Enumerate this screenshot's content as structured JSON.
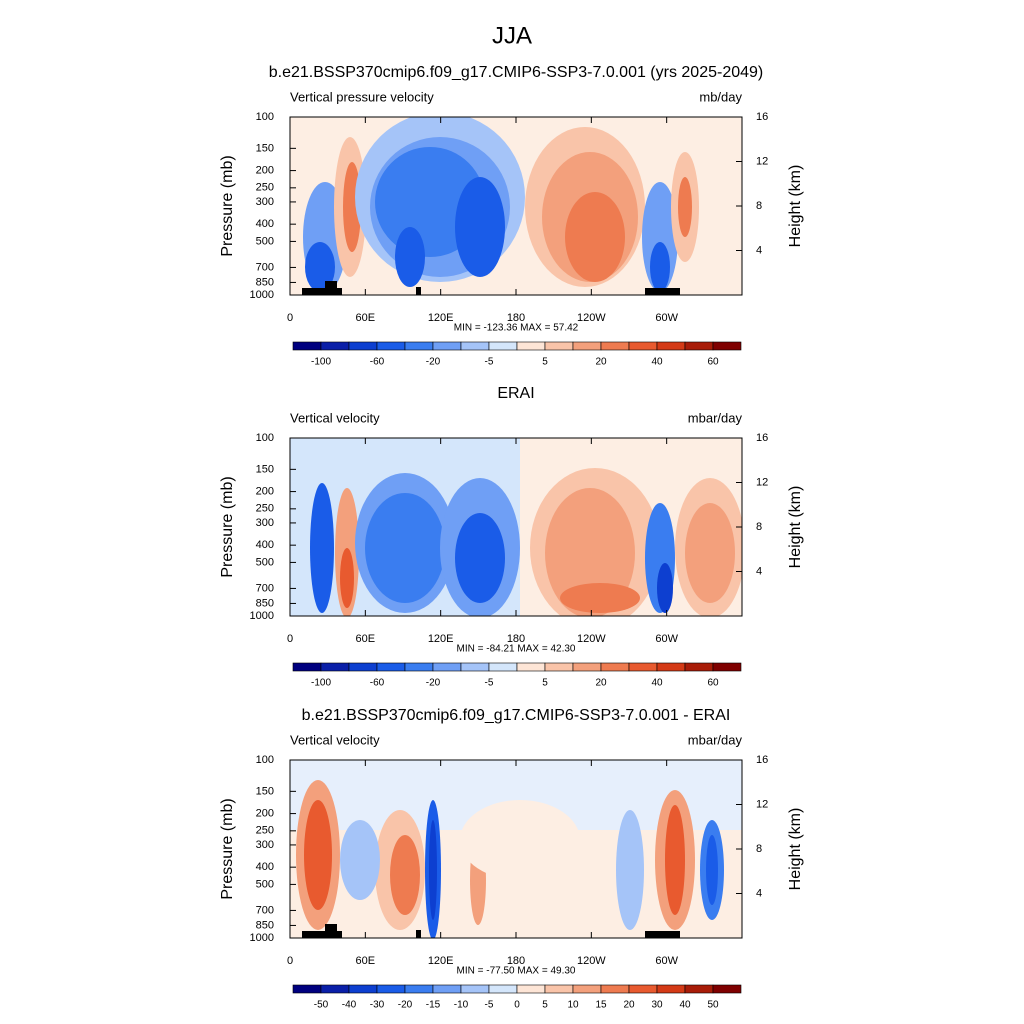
{
  "title": "JJA",
  "axes": {
    "xlim": [
      0,
      360
    ],
    "xticks": [
      0,
      {
        "value": 60,
        "label": "60E"
      },
      {
        "value": 120,
        "label": "120E"
      },
      {
        "value": 180,
        "label": "180"
      },
      {
        "value": 240,
        "label": "120W"
      },
      {
        "value": 300,
        "label": "60W"
      }
    ],
    "ylim": [
      1000,
      100
    ],
    "log_y": true,
    "yticks": [
      100,
      150,
      200,
      250,
      300,
      400,
      500,
      700,
      850,
      1000
    ],
    "y2lim": [
      0,
      16
    ],
    "y2ticks": [
      4,
      8,
      12,
      16
    ],
    "y_axis_label": "Pressure (mb)",
    "y2_axis_label": "Height (km)"
  },
  "colorbar_colors": [
    "#00007f",
    "#0a1fa8",
    "#0d3fd0",
    "#1a5ce8",
    "#3a7df0",
    "#6f9ff5",
    "#a5c4f8",
    "#d4e6fb",
    "#fde5d6",
    "#f9c4a9",
    "#f3a07c",
    "#ee7b50",
    "#e85a2f",
    "#d43a16",
    "#a81c08",
    "#7f0000"
  ],
  "panels": [
    {
      "title": "b.e21.BSSP370cmip6.f09_g17.CMIP6-SSP3-7.0.001 (yrs 2025-2049)",
      "left_label": "Vertical pressure velocity",
      "right_label": "mb/day",
      "stats": "MIN = -123.36  MAX =  57.42",
      "colorbar_labels": [
        "-100",
        "-60",
        "-20",
        "-5",
        "5",
        "20",
        "40",
        "60"
      ]
    },
    {
      "title": "ERAI",
      "left_label": "Vertical velocity",
      "right_label": "mbar/day",
      "stats": "MIN = -84.21  MAX =  42.30",
      "colorbar_labels": [
        "-100",
        "-60",
        "-20",
        "-5",
        "5",
        "20",
        "40",
        "60"
      ]
    },
    {
      "title": "b.e21.BSSP370cmip6.f09_g17.CMIP6-SSP3-7.0.001 - ERAI",
      "left_label": "Vertical velocity",
      "right_label": "mbar/day",
      "stats": "MIN = -77.50  MAX =  49.30",
      "colorbar_labels": [
        "-50",
        "-40",
        "-30",
        "-20",
        "-15",
        "-10",
        "-5",
        "0",
        "5",
        "10",
        "15",
        "20",
        "30",
        "40",
        "50"
      ]
    }
  ]
}
